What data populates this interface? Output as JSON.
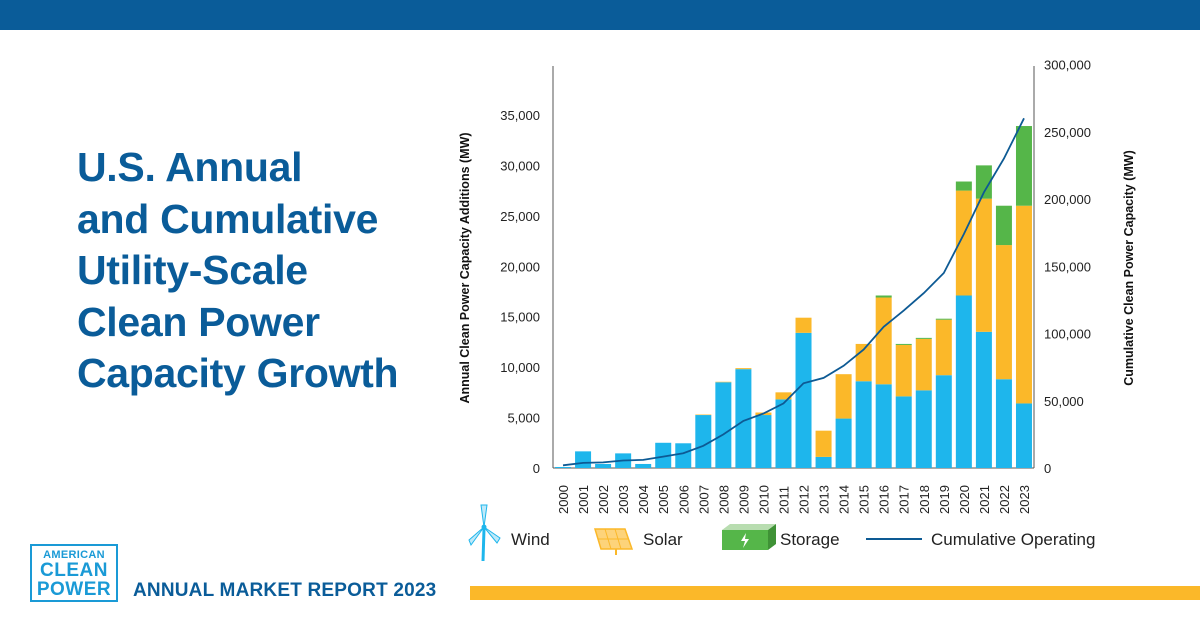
{
  "title_lines": [
    "U.S. Annual",
    "and Cumulative",
    "Utility-Scale",
    "Clean Power",
    "Capacity Growth"
  ],
  "logo": {
    "line1": "AMERICAN",
    "line2": "CLEAN",
    "line3": "POWER"
  },
  "report_title": "ANNUAL MARKET REPORT 2023",
  "colors": {
    "brand_blue": "#0a5c99",
    "wind": "#1eb6ec",
    "solar": "#fbb829",
    "storage": "#55b649",
    "cumulative": "#0d5a94",
    "accent": "#fbb829"
  },
  "chart_data": {
    "type": "bar",
    "stacked": true,
    "categories": [
      "2000",
      "2001",
      "2002",
      "2003",
      "2004",
      "2005",
      "2006",
      "2007",
      "2008",
      "2009",
      "2010",
      "2011",
      "2012",
      "2013",
      "2014",
      "2015",
      "2016",
      "2017",
      "2018",
      "2019",
      "2020",
      "2021",
      "2022",
      "2023"
    ],
    "series": [
      {
        "name": "Wind",
        "values": [
          100,
          1650,
          400,
          1450,
          400,
          2500,
          2450,
          5250,
          8500,
          9800,
          5250,
          6800,
          13400,
          1100,
          4900,
          8600,
          8300,
          7100,
          7700,
          9200,
          17100,
          13500,
          8800,
          6400
        ]
      },
      {
        "name": "Solar",
        "values": [
          0,
          0,
          0,
          0,
          0,
          0,
          0,
          50,
          50,
          100,
          250,
          700,
          1500,
          2600,
          4400,
          3700,
          8600,
          5100,
          5100,
          5500,
          10400,
          13200,
          13300,
          19600
        ]
      },
      {
        "name": "Storage",
        "values": [
          0,
          0,
          0,
          0,
          0,
          0,
          0,
          0,
          0,
          0,
          0,
          0,
          0,
          0,
          0,
          0,
          200,
          100,
          100,
          100,
          900,
          3300,
          3900,
          7900
        ]
      }
    ],
    "line_series": {
      "name": "Cumulative Operating",
      "values": [
        2000,
        3800,
        4200,
        5600,
        6000,
        8500,
        11000,
        16500,
        25000,
        35000,
        40500,
        48000,
        63000,
        67000,
        76000,
        88000,
        105000,
        117000,
        130000,
        145000,
        174000,
        205000,
        230000,
        260000
      ]
    },
    "ylabel": "Annual Clean Power Capacity Additions (MW)",
    "y2label": "Cumulative Clean Power Capacity (MW)",
    "ylim": [
      0,
      40000
    ],
    "y2lim": [
      0,
      300000
    ],
    "yticks": [
      0,
      5000,
      10000,
      15000,
      20000,
      25000,
      30000,
      35000
    ],
    "yticks_labels": [
      "0",
      "5,000",
      "10,000",
      "15,000",
      "20,000",
      "25,000",
      "30,000",
      "35,000"
    ],
    "y2ticks": [
      0,
      50000,
      100000,
      150000,
      200000,
      250000,
      300000
    ],
    "y2ticks_labels": [
      "0",
      "50,000",
      "100,000",
      "150,000",
      "200,000",
      "250,000",
      "300,000"
    ],
    "legend": [
      {
        "name": "Wind",
        "icon": "wind-turbine-icon"
      },
      {
        "name": "Solar",
        "icon": "solar-panel-icon"
      },
      {
        "name": "Storage",
        "icon": "battery-icon"
      },
      {
        "name": "Cumulative Operating",
        "icon": "line-icon"
      }
    ],
    "legend_position": "bottom"
  }
}
